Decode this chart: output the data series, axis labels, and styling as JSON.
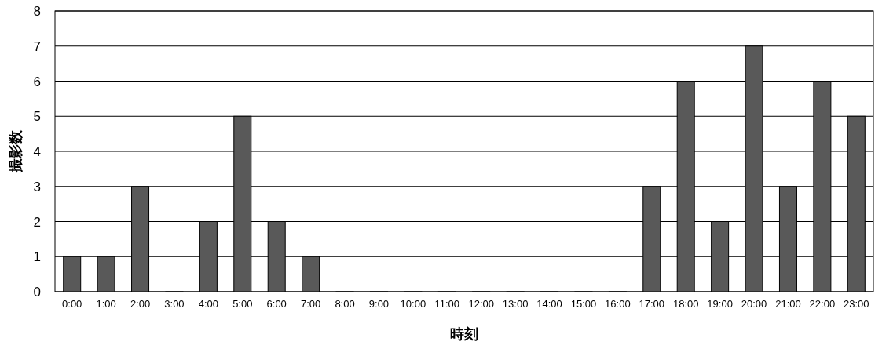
{
  "chart_data": {
    "type": "bar",
    "xlabel": "時刻",
    "ylabel": "撮影数",
    "categories": [
      "0:00",
      "1:00",
      "2:00",
      "3:00",
      "4:00",
      "5:00",
      "6:00",
      "7:00",
      "8:00",
      "9:00",
      "10:00",
      "11:00",
      "12:00",
      "13:00",
      "14:00",
      "15:00",
      "16:00",
      "17:00",
      "18:00",
      "19:00",
      "20:00",
      "21:00",
      "22:00",
      "23:00"
    ],
    "values": [
      1,
      1,
      3,
      0,
      2,
      5,
      2,
      1,
      0,
      0,
      0,
      0,
      0,
      0,
      0,
      0,
      0,
      3,
      6,
      2,
      7,
      3,
      6,
      5
    ],
    "color": "#595959",
    "ylim": [
      0,
      8
    ],
    "yticks": [
      0,
      1,
      2,
      3,
      4,
      5,
      6,
      7,
      8
    ],
    "grid": "y"
  }
}
